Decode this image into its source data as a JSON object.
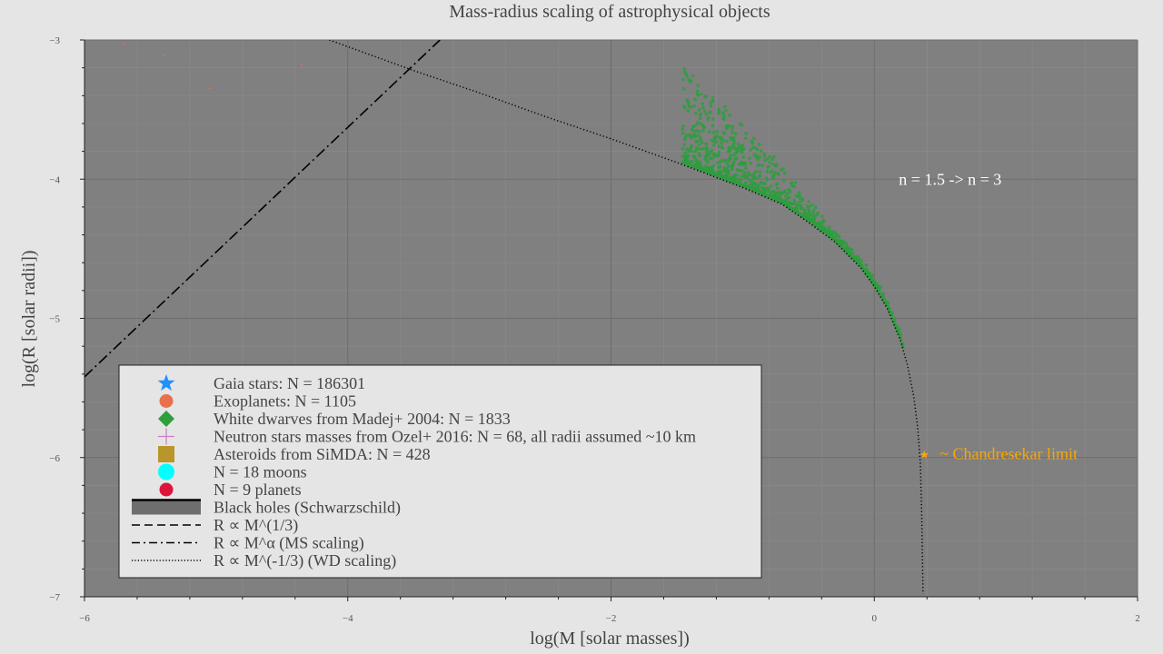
{
  "chart_data": {
    "type": "scatter",
    "title": "Mass-radius scaling of astrophysical objects",
    "xlabel": "log(M [solar masses])",
    "ylabel": "log(R [solar radii])",
    "xlim": [
      -6,
      2
    ],
    "ylim": [
      -7,
      -3
    ],
    "xticks": [
      -6,
      -4,
      -2,
      0,
      2
    ],
    "yticks": [
      -7,
      -6,
      -5,
      -4,
      -3
    ],
    "x_tick_labels": [
      "−6",
      "−4",
      "−2",
      "0",
      "2"
    ],
    "y_tick_labels": [
      "−7",
      "−6",
      "−5",
      "−4",
      "−3"
    ],
    "grid": true,
    "plot_background": "#808080",
    "page_background": "#e5e5e5",
    "legend_position": "lower-left",
    "legend": [
      {
        "label": "Gaia stars: N = 186301",
        "marker": "star",
        "color": "#1e90ff"
      },
      {
        "label": "Exoplanets: N = 1105",
        "marker": "circle",
        "color": "#e8704c"
      },
      {
        "label": "White dwarves from Madej+ 2004: N = 1833",
        "marker": "diamond",
        "color": "#2e9e3e"
      },
      {
        "label": "Neutron stars masses from Ozel+ 2016: N = 68, all radii assumed ~10 km",
        "marker": "plus",
        "color": "#c77dc7"
      },
      {
        "label": "Asteroids from SiMDA: N = 428",
        "marker": "square",
        "color": "#b8962a"
      },
      {
        "label": "N = 18 moons",
        "marker": "circle",
        "color": "#00ffff"
      },
      {
        "label": "N = 9 planets",
        "marker": "circle",
        "color": "#dc143c"
      },
      {
        "label": "Black holes (Schwarzschild)",
        "marker": "band",
        "color": "#6e6e6e"
      },
      {
        "label": "R ∝ M^(1/3)",
        "marker": "dashed",
        "color": "#000000"
      },
      {
        "label": "R ∝ M^α (MS scaling)",
        "marker": "dashdot",
        "color": "#000000"
      },
      {
        "label": "R ∝ M^(-1/3) (WD scaling)",
        "marker": "dotted",
        "color": "#000000"
      }
    ],
    "series": [
      {
        "name": "R ∝ M^α (MS scaling)",
        "style": "dashdot",
        "color": "#000000",
        "x": [
          -6.0,
          -3.3
        ],
        "y": [
          -5.42,
          -3.0
        ]
      },
      {
        "name": "R ∝ M^(-1/3) (WD scaling)",
        "style": "dotted",
        "color": "#000000",
        "x": [
          -4.14,
          -3.5,
          -3.0,
          -2.5,
          -2.0,
          -1.5,
          -1.0,
          -0.7,
          -0.5,
          -0.3,
          -0.1,
          0.0,
          0.1,
          0.2,
          0.25,
          0.3,
          0.33,
          0.35,
          0.36,
          0.37
        ],
        "y": [
          -3.0,
          -3.22,
          -3.38,
          -3.55,
          -3.71,
          -3.88,
          -4.06,
          -4.18,
          -4.31,
          -4.45,
          -4.64,
          -4.77,
          -4.93,
          -5.16,
          -5.33,
          -5.56,
          -5.79,
          -6.05,
          -6.4,
          -6.98
        ]
      },
      {
        "name": "White dwarves from Madej+ 2004: N = 1833",
        "type": "scatter-cloud",
        "color": "#2e9e3e",
        "x_range": [
          -1.55,
          0.22
        ],
        "y_range": [
          -5.2,
          -3.5
        ],
        "count": 1833
      },
      {
        "name": "Exoplanets: N = 1105",
        "type": "scatter",
        "color": "#e8704c",
        "x": [
          -5.7,
          -5.4,
          -5.05,
          -4.35
        ],
        "y": [
          -3.03,
          -3.11,
          -3.35,
          -3.18
        ]
      }
    ],
    "annotations": [
      {
        "text": "n = 1.5 -> n = 3",
        "x": 0.38,
        "y": -4.0,
        "color": "#ffffff"
      },
      {
        "text": "~ Chandresekar limit",
        "x": 0.48,
        "y": -5.98,
        "color": "#ffa500"
      }
    ],
    "highlight_point": {
      "x": 0.38,
      "y": -5.98,
      "marker": "star",
      "color": "#ffa500"
    }
  }
}
